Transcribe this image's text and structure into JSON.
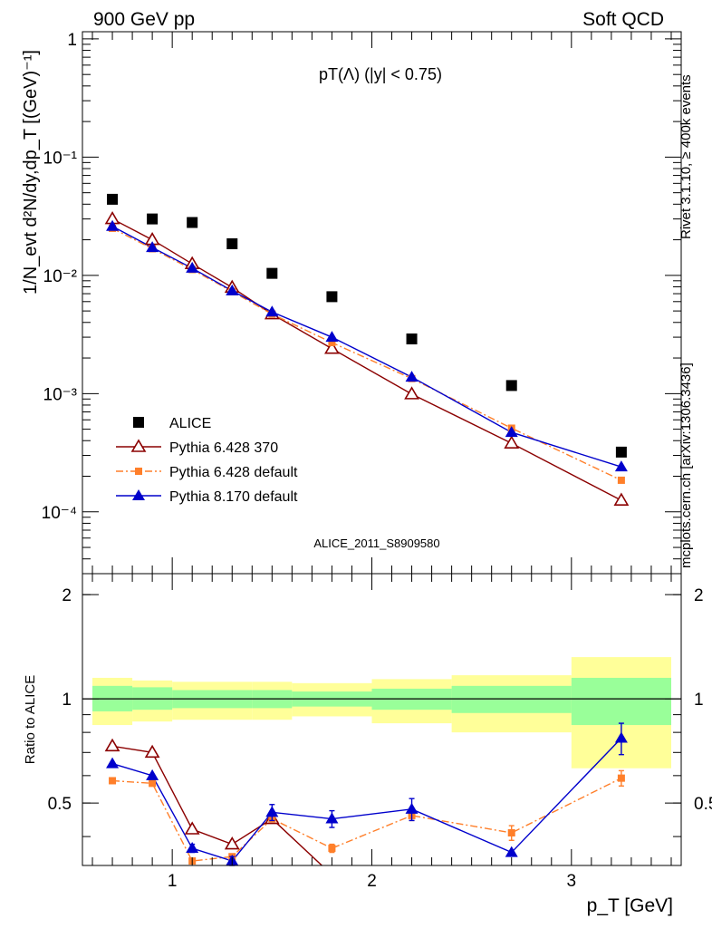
{
  "header": {
    "left": "900 GeV pp",
    "right": "Soft QCD"
  },
  "side": {
    "rivet": "Rivet 3.1.10, ≥ 400k events",
    "mcplots": "mcplots.cern.ch [arXiv:1306.3436]"
  },
  "colors": {
    "alice": "#000000",
    "py6_370": "#8b0000",
    "py6_default": "#ff7f2a",
    "py8_default": "#0000cc",
    "band_inner": "#99ff99",
    "band_outer": "#ffff99",
    "analysis_id": "#999999"
  },
  "chart_data": [
    {
      "type": "scatter",
      "title": "pT(Λ) (|y| < 0.75)",
      "analysis_id": "ALICE_2011_S8909580",
      "ylabel": "1/N_evt d²N/dy,dp_T [(GeV)⁻¹]",
      "xlabel": "",
      "xlim": [
        0.55,
        3.55
      ],
      "ylim": [
        3e-05,
        1.15
      ],
      "yscale": "log",
      "yticks": [
        {
          "value": 1,
          "label": "1"
        },
        {
          "value": 0.1,
          "label": "10⁻¹"
        },
        {
          "value": 0.01,
          "label": "10⁻²"
        },
        {
          "value": 0.001,
          "label": "10⁻³"
        },
        {
          "value": 0.0001,
          "label": "10⁻⁴"
        }
      ],
      "legend_position": "bottom-left",
      "series": [
        {
          "name": "ALICE",
          "marker": "square",
          "x": [
            0.7,
            0.9,
            1.1,
            1.3,
            1.5,
            1.8,
            2.2,
            2.7,
            3.25
          ],
          "y": [
            0.044,
            0.03,
            0.028,
            0.0185,
            0.0104,
            0.0066,
            0.0029,
            0.00117,
            0.00032
          ]
        },
        {
          "name": "Pythia 6.428 370",
          "marker": "open-triangle",
          "line": "solid",
          "x": [
            0.7,
            0.9,
            1.1,
            1.3,
            1.5,
            1.8,
            2.2,
            2.7,
            3.25
          ],
          "y": [
            0.03,
            0.02,
            0.0125,
            0.0079,
            0.0047,
            0.0024,
            0.00099,
            0.00038,
            0.000125
          ]
        },
        {
          "name": "Pythia 6.428 default",
          "marker": "square-small",
          "line": "dashdot",
          "x": [
            0.7,
            0.9,
            1.1,
            1.3,
            1.5,
            1.8,
            2.2,
            2.7,
            3.25
          ],
          "y": [
            0.025,
            0.0168,
            0.0112,
            0.0073,
            0.0047,
            0.0027,
            0.00134,
            0.00051,
            0.000185
          ]
        },
        {
          "name": "Pythia 8.170 default",
          "marker": "filled-triangle",
          "line": "solid",
          "x": [
            0.7,
            0.9,
            1.1,
            1.3,
            1.5,
            1.8,
            2.2,
            2.7,
            3.25
          ],
          "y": [
            0.026,
            0.0172,
            0.0115,
            0.0074,
            0.0049,
            0.003,
            0.00138,
            0.00047,
            0.00024
          ]
        }
      ]
    },
    {
      "type": "scatter",
      "ylabel": "Ratio to ALICE",
      "xlabel": "p_T [GeV]",
      "xlim": [
        0.55,
        3.55
      ],
      "ylim": [
        0.33,
        2.3
      ],
      "yscale": "log",
      "yticks": [
        {
          "value": 2,
          "label": "2"
        },
        {
          "value": 1,
          "label": "1"
        },
        {
          "value": 0.5,
          "label": "0.5"
        }
      ],
      "xticks": [
        {
          "value": 1,
          "label": "1"
        },
        {
          "value": 2,
          "label": "2"
        },
        {
          "value": 3,
          "label": "3"
        }
      ],
      "bands": {
        "edges": [
          0.6,
          0.8,
          1.0,
          1.4,
          1.6,
          2.0,
          2.4,
          3.0,
          3.5
        ],
        "inner": [
          [
            0.92,
            1.09
          ],
          [
            0.93,
            1.08
          ],
          [
            0.94,
            1.06
          ],
          [
            0.94,
            1.06
          ],
          [
            0.95,
            1.05
          ],
          [
            0.93,
            1.07
          ],
          [
            0.91,
            1.09
          ],
          [
            0.84,
            1.15
          ]
        ],
        "outer": [
          [
            0.84,
            1.15
          ],
          [
            0.86,
            1.13
          ],
          [
            0.87,
            1.12
          ],
          [
            0.87,
            1.12
          ],
          [
            0.89,
            1.11
          ],
          [
            0.85,
            1.14
          ],
          [
            0.8,
            1.17
          ],
          [
            0.63,
            1.32
          ]
        ]
      },
      "series": [
        {
          "name": "Pythia 6.428 370",
          "x": [
            0.7,
            0.9,
            1.1,
            1.3,
            1.5,
            1.8
          ],
          "y": [
            0.73,
            0.7,
            0.42,
            0.38,
            0.45,
            0.31
          ]
        },
        {
          "name": "Pythia 6.428 default",
          "x": [
            0.7,
            0.9,
            1.1,
            1.3,
            1.5,
            1.8,
            2.2,
            2.7,
            3.25
          ],
          "y": [
            0.58,
            0.57,
            0.34,
            0.35,
            0.45,
            0.37,
            0.46,
            0.41,
            0.59
          ],
          "err": [
            0,
            0,
            0,
            0,
            0,
            0.01,
            0.015,
            0.02,
            0.03
          ]
        },
        {
          "name": "Pythia 8.170 default",
          "x": [
            0.7,
            0.9,
            1.1,
            1.3,
            1.5,
            1.8,
            2.2,
            2.7,
            3.25
          ],
          "y": [
            0.65,
            0.6,
            0.37,
            0.34,
            0.47,
            0.45,
            0.48,
            0.36,
            0.77
          ],
          "err": [
            0,
            0,
            0.01,
            0.01,
            0.025,
            0.025,
            0.035,
            0,
            0.08
          ]
        }
      ]
    }
  ]
}
